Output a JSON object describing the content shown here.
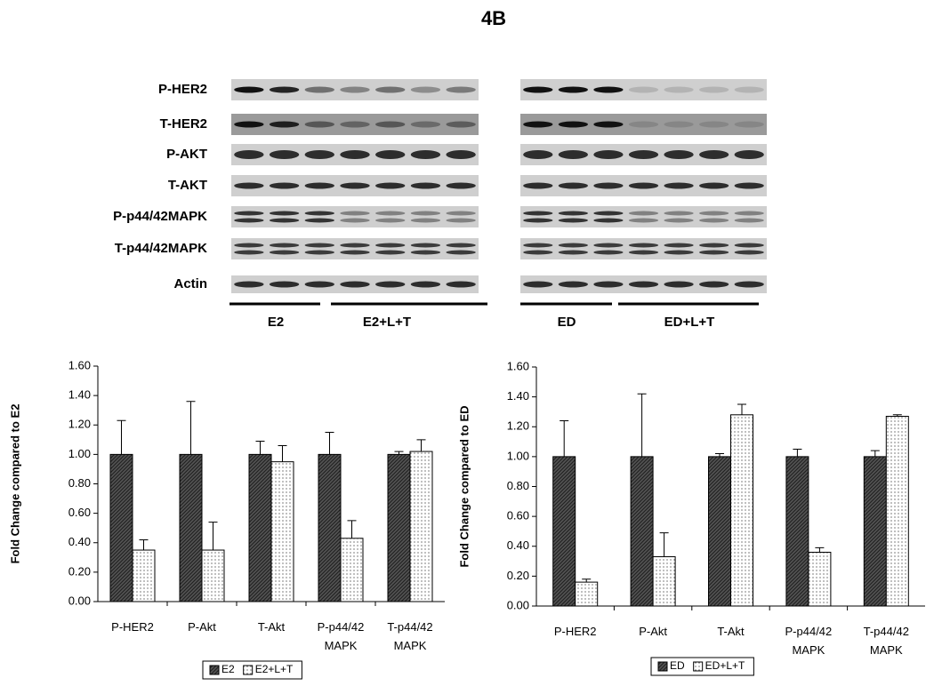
{
  "title": "4B",
  "blot_labels": [
    "P-HER2",
    "T-HER2",
    "P-AKT",
    "T-AKT",
    "P-p44/42MAPK",
    "T-p44/42MAPK",
    "Actin"
  ],
  "blot_groups": [
    {
      "label": "E2"
    },
    {
      "label": "E2+L+T"
    },
    {
      "label": "ED"
    },
    {
      "label": "ED+L+T"
    }
  ],
  "chart_data": [
    {
      "type": "bar",
      "ylabel": "Fold Change compared to E2",
      "categories": [
        "P-HER2",
        "P-Akt",
        "T-Akt",
        "P-p44/42 MAPK",
        "T-p44/42 MAPK"
      ],
      "series": [
        {
          "name": "E2",
          "color": "#555555",
          "values": [
            1,
            1,
            1,
            1,
            1
          ],
          "errors": [
            0.23,
            0.36,
            0.09,
            0.15,
            0.02
          ]
        },
        {
          "name": "E2+L+T",
          "color": "#ffffff",
          "values": [
            0.35,
            0.35,
            0.95,
            0.43,
            1.02
          ],
          "errors": [
            0.07,
            0.19,
            0.11,
            0.12,
            0.08
          ]
        }
      ],
      "ylim": [
        0,
        1.6
      ],
      "yticks": [
        {
          "value": 0,
          "label": "0.00"
        },
        {
          "value": 0.2,
          "label": "0.20"
        },
        {
          "value": 0.4,
          "label": "0.40"
        },
        {
          "value": 0.6,
          "label": "0.60"
        },
        {
          "value": 0.8,
          "label": "0.80"
        },
        {
          "value": 1,
          "label": "1.00"
        },
        {
          "value": 1.2,
          "label": "1.20"
        },
        {
          "value": 1.4,
          "label": "1.40"
        },
        {
          "value": 1.6,
          "label": "1.60"
        }
      ],
      "legend": "bottom"
    },
    {
      "type": "bar",
      "ylabel": "Fold Change compared to ED",
      "categories": [
        "P-HER2",
        "P-Akt",
        "T-Akt",
        "P-p44/42 MAPK",
        "T-p44/42 MAPK"
      ],
      "series": [
        {
          "name": "ED",
          "color": "#555555",
          "values": [
            1,
            1,
            1,
            1,
            1
          ],
          "errors": [
            0.24,
            0.42,
            0.02,
            0.05,
            0.04
          ]
        },
        {
          "name": "ED+L+T",
          "color": "#ffffff",
          "values": [
            0.16,
            0.33,
            1.28,
            0.36,
            1.27
          ],
          "errors": [
            0.02,
            0.16,
            0.07,
            0.03,
            0.01
          ]
        }
      ],
      "ylim": [
        0,
        1.6
      ],
      "yticks": [
        {
          "value": 0,
          "label": "0.00"
        },
        {
          "value": 0.2,
          "label": "0.20"
        },
        {
          "value": 0.4,
          "label": "0.40"
        },
        {
          "value": 0.6,
          "label": "0.60"
        },
        {
          "value": 0.8,
          "label": "0.80"
        },
        {
          "value": 1,
          "label": "1.00"
        },
        {
          "value": 1.2,
          "label": "1.20"
        },
        {
          "value": 1.4,
          "label": "1.40"
        },
        {
          "value": 1.6,
          "label": "1.60"
        }
      ],
      "legend": "bottom"
    }
  ]
}
